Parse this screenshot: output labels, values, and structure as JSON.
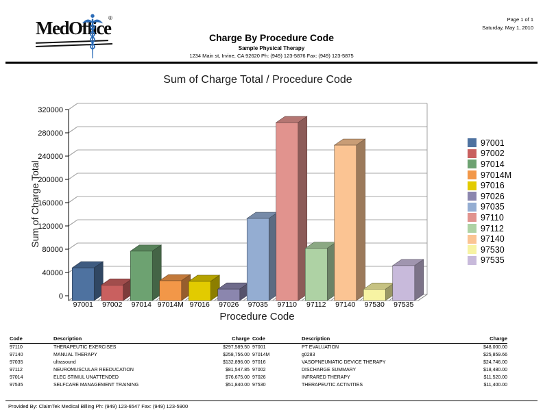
{
  "logo": {
    "text": "MedOffice",
    "registered": "®"
  },
  "header": {
    "title": "Charge By Procedure Code",
    "practice": "Sample Physical Therapy",
    "address": "1234 Main st, Irvine, CA 92620 Ph: (949) 123-5876 Fax: (949) 123-5875",
    "page_info": "Page 1 of 1",
    "date": "Saturday, May 1, 2010"
  },
  "chart_data": {
    "type": "bar",
    "title": "Sum of Charge Total / Procedure Code",
    "xlabel": "Procedure Code",
    "ylabel": "Sum of Charge Total",
    "ylim": [
      0,
      320000
    ],
    "ytick_step": 40000,
    "grid": true,
    "legend_position": "right",
    "style": "3d",
    "categories": [
      "97001",
      "97002",
      "97014",
      "97014M",
      "97016",
      "97026",
      "97035",
      "97110",
      "97112",
      "97140",
      "97530",
      "97535"
    ],
    "values": [
      48000.0,
      18480.0,
      76675.0,
      25859.66,
      24746.0,
      11520.0,
      132896.0,
      297589.5,
      81547.85,
      258756.0,
      11400.0,
      51840.0
    ],
    "colors": [
      "#4e72a0",
      "#c9605f",
      "#6da271",
      "#f29748",
      "#e2cb00",
      "#8b86ae",
      "#94add2",
      "#e1938e",
      "#aed2a4",
      "#fbc493",
      "#f7f3a3",
      "#c8badb"
    ]
  },
  "tables": {
    "headers": [
      "Code",
      "Description",
      "Charge"
    ],
    "left": [
      {
        "code": "97110",
        "description": "THERAPEUTIC EXERCISES",
        "charge": "$297,589.50"
      },
      {
        "code": "97140",
        "description": "MANUAL THERAPY",
        "charge": "$258,756.00"
      },
      {
        "code": "97035",
        "description": "ultrasound",
        "charge": "$132,896.00"
      },
      {
        "code": "97112",
        "description": "NEUROMUSCULAR REEDUCATION",
        "charge": "$81,547.85"
      },
      {
        "code": "97014",
        "description": "ELEC STIMUL UNATTENDED",
        "charge": "$76,675.00"
      },
      {
        "code": "97535",
        "description": "SELFCARE MANAGEMENT TRAINING",
        "charge": "$51,840.00"
      }
    ],
    "right": [
      {
        "code": "97001",
        "description": "PT EVALUATION",
        "charge": "$48,000.00"
      },
      {
        "code": "97014M",
        "description": "g0283",
        "charge": "$25,859.66"
      },
      {
        "code": "97016",
        "description": "VASOPNEUMATIC DEVICE THERAPY",
        "charge": "$24,746.00"
      },
      {
        "code": "97002",
        "description": "DISCHARGE SUMMARY",
        "charge": "$18,480.00"
      },
      {
        "code": "97026",
        "description": "INFRARED THERAPY",
        "charge": "$11,520.00"
      },
      {
        "code": "97530",
        "description": "THERAPEUTIC ACTIVITIES",
        "charge": "$11,400.00"
      }
    ]
  },
  "footer": {
    "text": "Provided By: ClaimTek Medical Billing Ph: (949) 123-6547 Fax: (949) 123-5900"
  }
}
